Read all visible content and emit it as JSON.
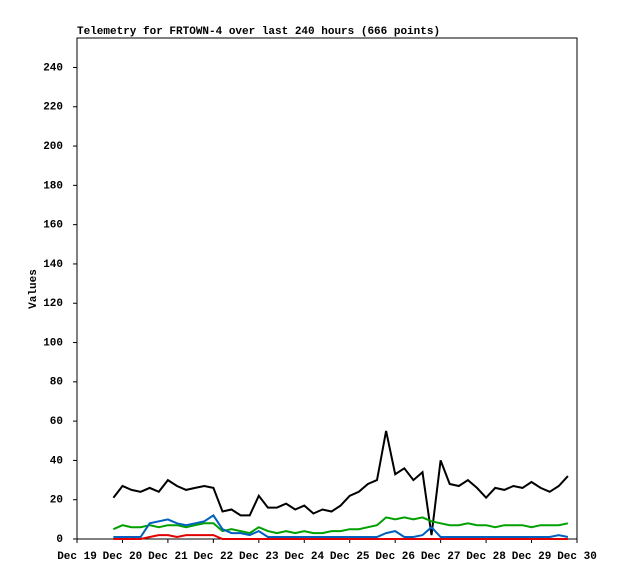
{
  "chart_data": {
    "type": "line",
    "title": "Telemetry for FRTOWN-4 over last 240 hours (666 points)",
    "y_label": "Values",
    "x": [
      19.8,
      20.0,
      20.2,
      20.4,
      20.6,
      20.8,
      21.0,
      21.2,
      21.4,
      21.6,
      21.8,
      22.0,
      22.2,
      22.4,
      22.6,
      22.8,
      23.0,
      23.2,
      23.4,
      23.6,
      23.8,
      24.0,
      24.2,
      24.4,
      24.6,
      24.8,
      25.0,
      25.2,
      25.4,
      25.6,
      25.8,
      26.0,
      26.2,
      26.4,
      26.6,
      26.8,
      27.0,
      27.2,
      27.4,
      27.6,
      27.8,
      28.0,
      28.2,
      28.4,
      28.6,
      28.8,
      29.0,
      29.2,
      29.4,
      29.6,
      29.8
    ],
    "series": [
      {
        "color": "#000000",
        "values": [
          21,
          27,
          25,
          24,
          26,
          24,
          30,
          27,
          25,
          26,
          27,
          26,
          14,
          15,
          12,
          12,
          22,
          16,
          16,
          18,
          15,
          17,
          13,
          15,
          14,
          17,
          22,
          24,
          28,
          30,
          55,
          33,
          36,
          30,
          34,
          2,
          40,
          28,
          27,
          30,
          26,
          21,
          26,
          25,
          27,
          26,
          29,
          26,
          24,
          27,
          32
        ]
      },
      {
        "color": "#00a000",
        "values": [
          5,
          7,
          6,
          6,
          7,
          6,
          7,
          7,
          6,
          7,
          8,
          8,
          4,
          5,
          4,
          3,
          6,
          4,
          3,
          4,
          3,
          4,
          3,
          3,
          4,
          4,
          5,
          5,
          6,
          7,
          11,
          10,
          11,
          10,
          11,
          9,
          8,
          7,
          7,
          8,
          7,
          7,
          6,
          7,
          7,
          7,
          6,
          7,
          7,
          7,
          8
        ]
      },
      {
        "color": "#0060c0",
        "values": [
          1,
          1,
          1,
          1,
          8,
          9,
          10,
          8,
          7,
          8,
          9,
          12,
          5,
          3,
          3,
          2,
          4,
          1,
          1,
          1,
          1,
          1,
          1,
          1,
          1,
          1,
          1,
          1,
          1,
          1,
          3,
          4,
          1,
          1,
          2,
          6,
          1,
          1,
          1,
          1,
          1,
          1,
          1,
          1,
          1,
          1,
          1,
          1,
          1,
          2,
          1
        ]
      },
      {
        "color": "#e00000",
        "values": [
          0,
          0,
          0,
          0,
          1,
          2,
          2,
          1,
          2,
          2,
          2,
          2,
          0,
          0,
          0,
          0,
          0,
          0,
          0,
          0,
          0,
          0,
          0,
          0,
          0,
          0,
          0,
          0,
          0,
          0,
          0,
          0,
          0,
          0,
          0,
          0,
          0,
          0,
          0,
          0,
          0,
          0,
          0,
          0,
          0,
          0,
          0,
          0,
          0,
          0,
          0
        ]
      }
    ],
    "xlim": [
      19,
      30
    ],
    "xticks": [
      {
        "value": 19,
        "label": "Dec 19"
      },
      {
        "value": 20,
        "label": "Dec 20"
      },
      {
        "value": 21,
        "label": "Dec 21"
      },
      {
        "value": 22,
        "label": "Dec 22"
      },
      {
        "value": 23,
        "label": "Dec 23"
      },
      {
        "value": 24,
        "label": "Dec 24"
      },
      {
        "value": 25,
        "label": "Dec 25"
      },
      {
        "value": 26,
        "label": "Dec 26"
      },
      {
        "value": 27,
        "label": "Dec 27"
      },
      {
        "value": 28,
        "label": "Dec 28"
      },
      {
        "value": 29,
        "label": "Dec 29"
      },
      {
        "value": 30,
        "label": "Dec 30"
      }
    ],
    "ylim": [
      0,
      255
    ],
    "yticks": [
      0,
      20,
      40,
      60,
      80,
      100,
      120,
      140,
      160,
      180,
      200,
      220,
      240
    ]
  }
}
